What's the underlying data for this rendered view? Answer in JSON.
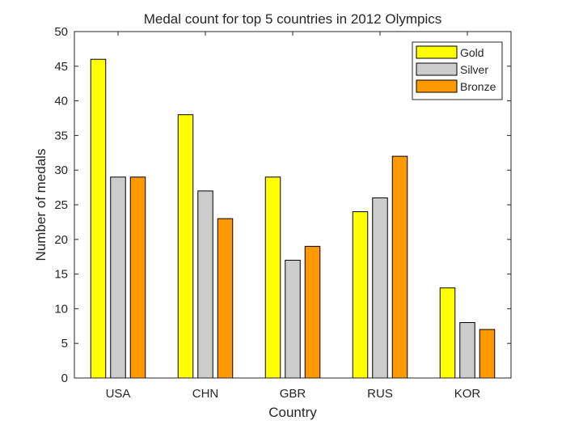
{
  "chart_data": {
    "type": "bar",
    "title": "Medal count for top 5 countries in 2012 Olympics",
    "xlabel": "Country",
    "ylabel": "Number of medals",
    "categories": [
      "USA",
      "CHN",
      "GBR",
      "RUS",
      "KOR"
    ],
    "series": [
      {
        "name": "Gold",
        "color": "#ffff00",
        "values": [
          46,
          38,
          29,
          24,
          13
        ]
      },
      {
        "name": "Silver",
        "color": "#cccccc",
        "values": [
          29,
          27,
          17,
          26,
          8
        ]
      },
      {
        "name": "Bronze",
        "color": "#ff9900",
        "values": [
          29,
          23,
          19,
          32,
          7
        ]
      }
    ],
    "ylim": [
      0,
      50
    ],
    "yticks": [
      0,
      5,
      10,
      15,
      20,
      25,
      30,
      35,
      40,
      45,
      50
    ],
    "grid": false,
    "legend_position": "top-right"
  }
}
